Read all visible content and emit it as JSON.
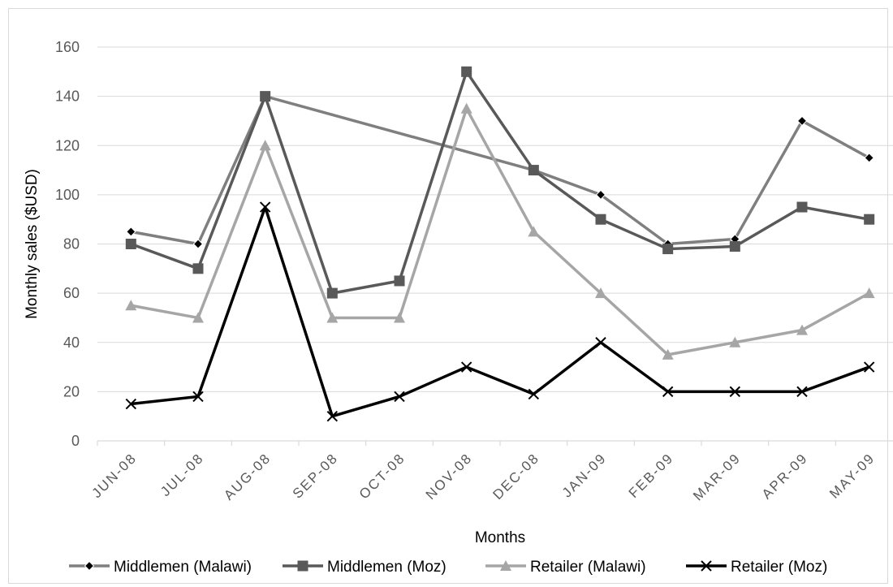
{
  "chart_data": {
    "type": "line",
    "title": "",
    "xlabel": "Months",
    "ylabel": "Monthly sales ($USD)",
    "ylim": [
      0,
      160
    ],
    "yticks": [
      0,
      20,
      40,
      60,
      80,
      100,
      120,
      140,
      160
    ],
    "categories": [
      "JUN-08",
      "JUL-08",
      "AUG-08",
      "SEP-08",
      "OCT-08",
      "NOV-08",
      "DEC-08",
      "JAN-09",
      "FEB-09",
      "MAR-09",
      "APR-09",
      "MAY-09"
    ],
    "grid": true,
    "legend_position": "bottom",
    "series": [
      {
        "name": "Middlemen (Malawi)",
        "marker": "diamond",
        "color": "#7f7f7f",
        "values": [
          85,
          80,
          140,
          null,
          null,
          null,
          110,
          100,
          80,
          82,
          130,
          115
        ]
      },
      {
        "name": "Middlemen (Moz)",
        "marker": "square",
        "color": "#595959",
        "values": [
          80,
          70,
          140,
          60,
          65,
          150,
          110,
          90,
          78,
          79,
          95,
          90
        ]
      },
      {
        "name": "Retailer (Malawi)",
        "marker": "triangle",
        "color": "#a6a6a6",
        "values": [
          55,
          50,
          120,
          50,
          50,
          135,
          85,
          60,
          35,
          40,
          45,
          60
        ]
      },
      {
        "name": "Retailer (Moz)",
        "marker": "x",
        "color": "#000000",
        "values": [
          15,
          18,
          95,
          10,
          18,
          30,
          19,
          40,
          20,
          20,
          20,
          30
        ]
      }
    ]
  }
}
